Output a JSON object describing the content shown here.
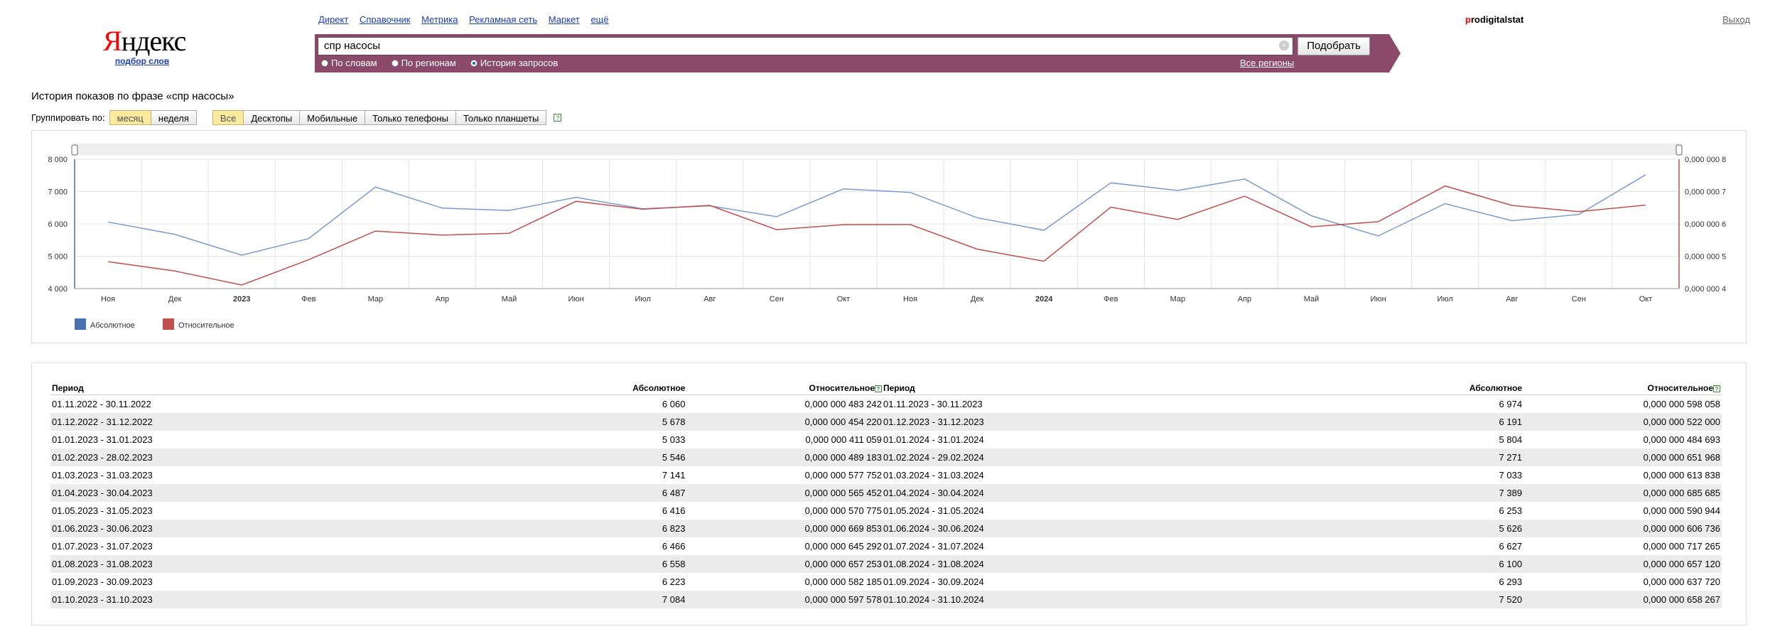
{
  "logo": {
    "word_first": "Я",
    "word_rest": "ндекс",
    "subtitle": "подбор слов"
  },
  "topnav": [
    "Директ",
    "Справочник",
    "Метрика",
    "Рекламная сеть",
    "Маркет",
    "ещё"
  ],
  "user": {
    "first_letter": "p",
    "rest": "rodigitalstat"
  },
  "logout_label": "Выход",
  "search": {
    "value": "спр насосы",
    "clear_icon": "×",
    "submit_label": "Подобрать"
  },
  "modes": [
    {
      "label": "По словам",
      "checked": false
    },
    {
      "label": "По регионам",
      "checked": false
    },
    {
      "label": "История запросов",
      "checked": true
    }
  ],
  "regions_label": "Все регионы",
  "page_title": "История показов по фразе «спр насосы»",
  "group": {
    "label": "Группировать по:",
    "period_options": [
      "месяц",
      "неделя"
    ],
    "period_selected": 0,
    "device_options": [
      "Все",
      "Десктопы",
      "Мобильные",
      "Только телефоны",
      "Только планшеты"
    ],
    "device_selected": 0,
    "help_icon": "?"
  },
  "chart_data": {
    "type": "line",
    "categories": [
      "Ноя",
      "Дек",
      "2023",
      "Фев",
      "Мар",
      "Апр",
      "Май",
      "Июн",
      "Июл",
      "Авг",
      "Сен",
      "Окт",
      "Ноя",
      "Дек",
      "2024",
      "Фев",
      "Мар",
      "Апр",
      "Май",
      "Июн",
      "Июл",
      "Авг",
      "Сен",
      "Окт"
    ],
    "bold_categories": [
      "2023",
      "2024"
    ],
    "series": [
      {
        "name": "Абсолютное",
        "color": "#7a9ad0",
        "legend_color": "#4a72b0",
        "axis": "left",
        "values": [
          6060,
          5678,
          5033,
          5546,
          7141,
          6487,
          6416,
          6823,
          6466,
          6558,
          6223,
          7084,
          6974,
          6191,
          5804,
          7271,
          7033,
          7389,
          6253,
          5626,
          6627,
          6100,
          6293,
          7520
        ]
      },
      {
        "name": "Относительное",
        "color": "#c0504d",
        "legend_color": "#c0504d",
        "axis": "right",
        "values": [
          4.83242e-07,
          4.5422e-07,
          4.11059e-07,
          4.89183e-07,
          5.77752e-07,
          5.65452e-07,
          5.70775e-07,
          6.69853e-07,
          6.45292e-07,
          6.57253e-07,
          5.82185e-07,
          5.97578e-07,
          5.98058e-07,
          5.22e-07,
          4.84693e-07,
          6.51968e-07,
          6.13838e-07,
          6.85685e-07,
          5.90944e-07,
          6.06736e-07,
          7.17265e-07,
          6.5712e-07,
          6.3772e-07,
          6.58267e-07
        ]
      }
    ],
    "y_left": {
      "ylim": [
        4000,
        8000
      ],
      "ticks": [
        "4 000",
        "5 000",
        "6 000",
        "7 000",
        "8 000"
      ]
    },
    "y_right": {
      "ylim": [
        4e-07,
        8e-07
      ],
      "ticks": [
        "0,000 000 4",
        "0,000 000 5",
        "0,000 000 6",
        "0,000 000 7",
        "0,000 000 8"
      ]
    },
    "grid": true,
    "legend_position": "bottom-left"
  },
  "table": {
    "headers": {
      "period": "Период",
      "absolute": "Абсолютное",
      "relative": "Относительное"
    },
    "left_rows": [
      [
        "01.11.2022 - 30.11.2022",
        "6 060",
        "0,000 000 483 242"
      ],
      [
        "01.12.2022 - 31.12.2022",
        "5 678",
        "0,000 000 454 220"
      ],
      [
        "01.01.2023 - 31.01.2023",
        "5 033",
        "0,000 000 411 059"
      ],
      [
        "01.02.2023 - 28.02.2023",
        "5 546",
        "0,000 000 489 183"
      ],
      [
        "01.03.2023 - 31.03.2023",
        "7 141",
        "0,000 000 577 752"
      ],
      [
        "01.04.2023 - 30.04.2023",
        "6 487",
        "0,000 000 565 452"
      ],
      [
        "01.05.2023 - 31.05.2023",
        "6 416",
        "0,000 000 570 775"
      ],
      [
        "01.06.2023 - 30.06.2023",
        "6 823",
        "0,000 000 669 853"
      ],
      [
        "01.07.2023 - 31.07.2023",
        "6 466",
        "0,000 000 645 292"
      ],
      [
        "01.08.2023 - 31.08.2023",
        "6 558",
        "0,000 000 657 253"
      ],
      [
        "01.09.2023 - 30.09.2023",
        "6 223",
        "0,000 000 582 185"
      ],
      [
        "01.10.2023 - 31.10.2023",
        "7 084",
        "0,000 000 597 578"
      ]
    ],
    "right_rows": [
      [
        "01.11.2023 - 30.11.2023",
        "6 974",
        "0,000 000 598 058"
      ],
      [
        "01.12.2023 - 31.12.2023",
        "6 191",
        "0,000 000 522 000"
      ],
      [
        "01.01.2024 - 31.01.2024",
        "5 804",
        "0,000 000 484 693"
      ],
      [
        "01.02.2024 - 29.02.2024",
        "7 271",
        "0,000 000 651 968"
      ],
      [
        "01.03.2024 - 31.03.2024",
        "7 033",
        "0,000 000 613 838"
      ],
      [
        "01.04.2024 - 30.04.2024",
        "7 389",
        "0,000 000 685 685"
      ],
      [
        "01.05.2024 - 31.05.2024",
        "6 253",
        "0,000 000 590 944"
      ],
      [
        "01.06.2024 - 30.06.2024",
        "5 626",
        "0,000 000 606 736"
      ],
      [
        "01.07.2024 - 31.07.2024",
        "6 627",
        "0,000 000 717 265"
      ],
      [
        "01.08.2024 - 31.08.2024",
        "6 100",
        "0,000 000 657 120"
      ],
      [
        "01.09.2024 - 30.09.2024",
        "6 293",
        "0,000 000 637 720"
      ],
      [
        "01.10.2024 - 31.10.2024",
        "7 520",
        "0,000 000 658 267"
      ]
    ]
  }
}
